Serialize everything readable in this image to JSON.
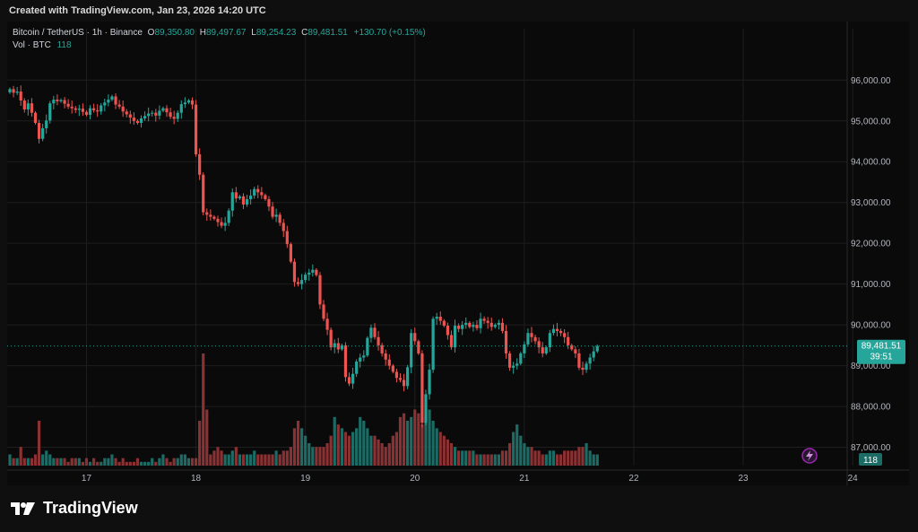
{
  "header": {
    "created": "Created with TradingView.com, Jan 23, 2026 14:20 UTC"
  },
  "legend": {
    "symbol": "Bitcoin / TetherUS · 1h · Binance",
    "o_label": "O",
    "o_value": "89,350.80",
    "h_label": "H",
    "h_value": "89,497.67",
    "l_label": "L",
    "l_value": "89,254.23",
    "c_label": "C",
    "c_value": "89,481.51",
    "change": "+130.70 (+0.15%)",
    "vol_label": "Vol · BTC",
    "vol_value": "118"
  },
  "price_badge": {
    "price": "89,481.51",
    "countdown": "39:51"
  },
  "volume_badge": "118",
  "footer": {
    "brand": "TradingView"
  },
  "colors": {
    "up": "#26a69a",
    "down": "#ef5350",
    "up_vol": "#1d6b65",
    "down_vol": "#8a3133",
    "grid": "#1e1e1e",
    "axis_text": "#b2b5be"
  },
  "chart_data": {
    "type": "candlestick",
    "symbol": "BTC/USDT",
    "interval": "1h",
    "y_ticks": [
      "96,000.00",
      "95,000.00",
      "94,000.00",
      "93,000.00",
      "92,000.00",
      "91,000.00",
      "90,000.00",
      "89,000.00",
      "88,000.00",
      "87,000.00"
    ],
    "y_tick_values": [
      96000,
      95000,
      94000,
      93000,
      92000,
      91000,
      90000,
      89000,
      88000,
      87000
    ],
    "ylim": [
      86550,
      96600
    ],
    "x_ticks": [
      "17",
      "18",
      "19",
      "20",
      "21",
      "22",
      "23",
      "24"
    ],
    "x_tick_bar_index": [
      21,
      51,
      81,
      111,
      141,
      171,
      201,
      231
    ],
    "last_price": 89481.51,
    "volume_last": 118,
    "closes": [
      95780,
      95690,
      95720,
      95500,
      95280,
      95430,
      95200,
      94950,
      94560,
      94820,
      95010,
      95430,
      95520,
      95480,
      95510,
      95420,
      95350,
      95310,
      95270,
      95300,
      95220,
      95150,
      95310,
      95260,
      95230,
      95380,
      95450,
      95520,
      95600,
      95400,
      95350,
      95230,
      95160,
      95080,
      95000,
      94950,
      95060,
      95120,
      95180,
      95200,
      95130,
      95250,
      95310,
      95210,
      95100,
      95050,
      95200,
      95410,
      95450,
      95500,
      95400,
      94180,
      93680,
      92760,
      92700,
      92650,
      92600,
      92520,
      92430,
      92500,
      92800,
      93250,
      93100,
      93150,
      92950,
      93080,
      93170,
      93330,
      93250,
      93180,
      93080,
      92900,
      92650,
      92700,
      92500,
      92300,
      91980,
      91550,
      91050,
      91000,
      91100,
      91230,
      91280,
      91350,
      91220,
      90500,
      90150,
      89880,
      89450,
      89550,
      89400,
      89500,
      88720,
      88560,
      88800,
      89100,
      89200,
      89250,
      89680,
      89930,
      89700,
      89500,
      89300,
      89150,
      89000,
      88850,
      88700,
      88650,
      88500,
      88960,
      89800,
      89600,
      89300,
      87600,
      88300,
      88900,
      90150,
      90200,
      90100,
      89980,
      89750,
      89450,
      89980,
      89900,
      90000,
      90050,
      89950,
      90000,
      89920,
      90150,
      90100,
      90050,
      89950,
      90000,
      90050,
      89850,
      89300,
      88950,
      89000,
      89050,
      89300,
      89520,
      89800,
      89700,
      89600,
      89450,
      89300,
      89450,
      89800,
      89900,
      89850,
      89800,
      89700,
      89500,
      89400,
      89300,
      88950,
      88900,
      89050,
      89200,
      89350,
      89481.51
    ],
    "opens": [
      95700,
      95780,
      95690,
      95720,
      95500,
      95280,
      95430,
      95200,
      94950,
      94560,
      94820,
      95010,
      95430,
      95520,
      95480,
      95510,
      95420,
      95350,
      95310,
      95270,
      95300,
      95220,
      95150,
      95310,
      95260,
      95230,
      95380,
      95450,
      95520,
      95600,
      95400,
      95350,
      95230,
      95160,
      95080,
      95000,
      94950,
      95060,
      95120,
      95180,
      95200,
      95130,
      95250,
      95310,
      95210,
      95100,
      95050,
      95200,
      95410,
      95450,
      95500,
      95400,
      94180,
      93680,
      92760,
      92700,
      92650,
      92600,
      92520,
      92430,
      92500,
      92800,
      93250,
      93100,
      93150,
      92950,
      93080,
      93170,
      93330,
      93250,
      93180,
      93080,
      92900,
      92650,
      92700,
      92500,
      92300,
      91980,
      91550,
      91050,
      91000,
      91100,
      91230,
      91280,
      91350,
      91220,
      90500,
      90150,
      89880,
      89450,
      89550,
      89400,
      89500,
      88720,
      88560,
      88800,
      89100,
      89200,
      89250,
      89680,
      89930,
      89700,
      89500,
      89300,
      89150,
      89000,
      88850,
      88700,
      88650,
      88500,
      88960,
      89800,
      89600,
      89300,
      87600,
      88300,
      88900,
      90150,
      90200,
      90100,
      89980,
      89750,
      89450,
      89980,
      89900,
      90000,
      90050,
      89950,
      90000,
      89920,
      90150,
      90100,
      90050,
      89950,
      90000,
      90050,
      89850,
      89300,
      88950,
      89000,
      89050,
      89300,
      89520,
      89800,
      89700,
      89600,
      89450,
      89300,
      89450,
      89800,
      89900,
      89850,
      89800,
      89700,
      89500,
      89400,
      89300,
      88950,
      88900,
      89050,
      89200,
      89350.8
    ],
    "volume_levels": [
      3,
      2,
      2,
      5,
      2,
      2,
      2,
      3,
      12,
      3,
      4,
      3,
      2,
      2,
      2,
      2,
      1,
      2,
      2,
      2,
      1,
      2,
      1,
      2,
      1,
      1,
      2,
      2,
      3,
      2,
      1,
      2,
      1,
      1,
      1,
      2,
      1,
      1,
      1,
      2,
      1,
      2,
      3,
      2,
      1,
      2,
      2,
      3,
      3,
      2,
      2,
      2,
      12,
      30,
      15,
      3,
      4,
      5,
      4,
      3,
      3,
      4,
      5,
      3,
      3,
      3,
      3,
      4,
      3,
      3,
      3,
      3,
      3,
      4,
      3,
      4,
      4,
      5,
      10,
      12,
      10,
      8,
      6,
      5,
      5,
      5,
      5,
      6,
      8,
      13,
      11,
      10,
      9,
      8,
      9,
      10,
      13,
      12,
      10,
      8,
      8,
      7,
      6,
      5,
      6,
      8,
      9,
      13,
      14,
      12,
      13,
      15,
      14,
      11,
      13,
      15,
      12,
      10,
      9,
      8,
      7,
      6,
      5,
      4,
      4,
      4,
      4,
      4,
      3,
      3,
      3,
      3,
      3,
      3,
      3,
      4,
      4,
      6,
      9,
      11,
      8,
      6,
      5,
      5,
      4,
      4,
      3,
      3,
      4,
      4,
      3,
      3,
      4,
      4,
      4,
      4,
      5,
      5,
      6,
      4,
      3,
      3,
      3,
      4
    ]
  }
}
